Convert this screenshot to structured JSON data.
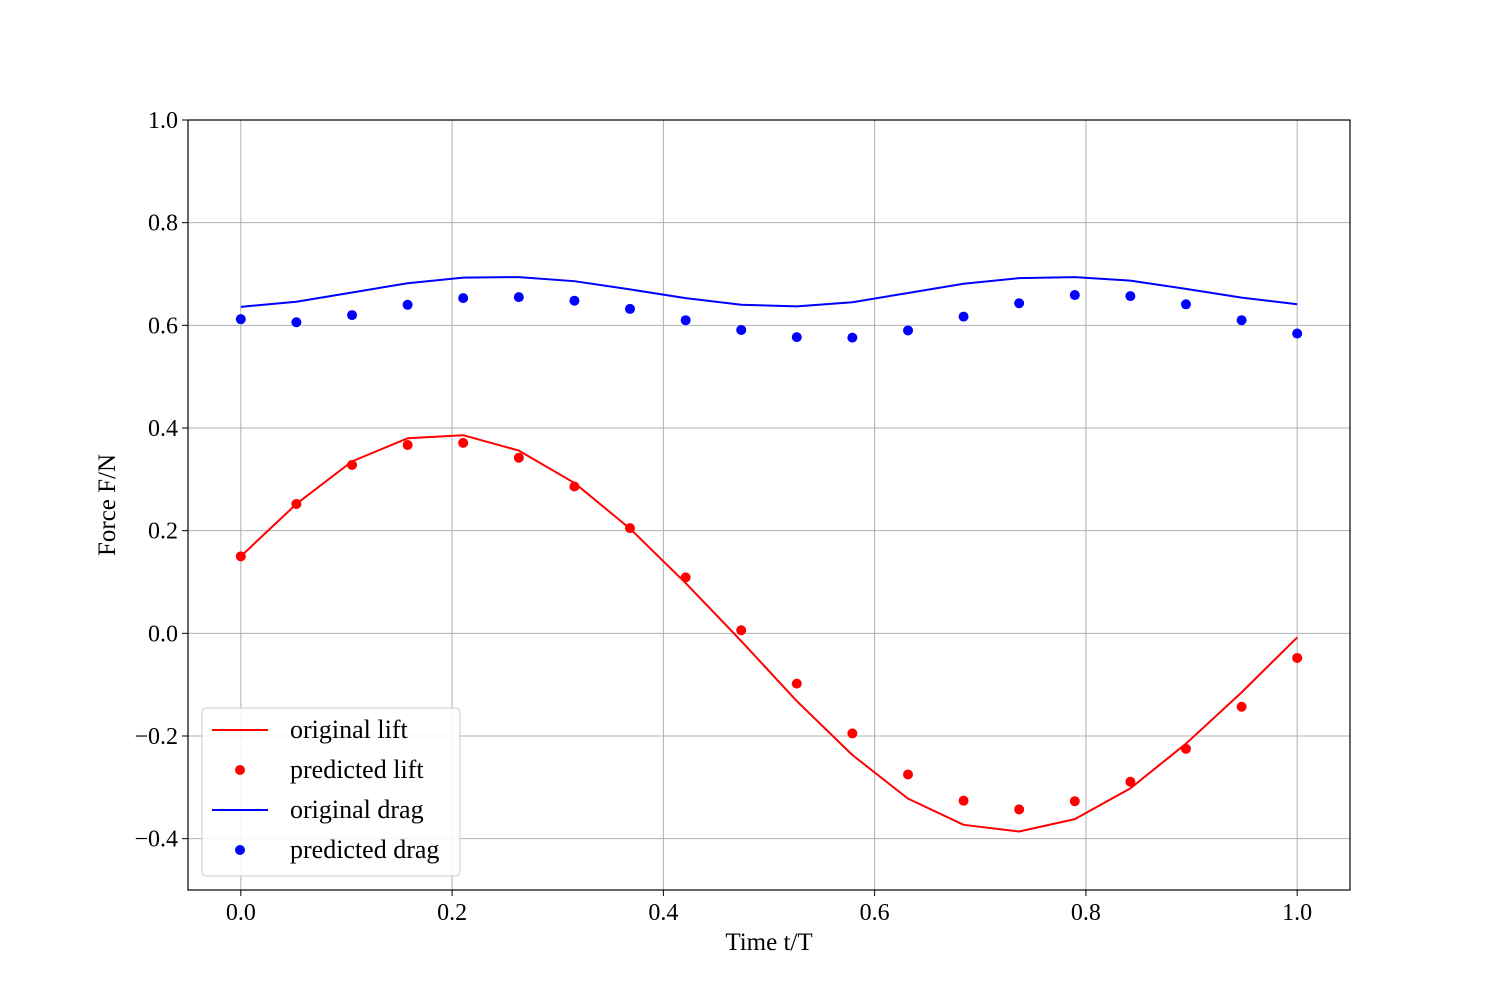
{
  "chart_data": {
    "type": "line",
    "title": "",
    "xlabel": "Time t/T",
    "ylabel": "Force F/N",
    "xlim": [
      -0.05,
      1.05
    ],
    "ylim": [
      -0.5,
      1.0
    ],
    "xticks": [
      0.0,
      0.2,
      0.4,
      0.6,
      0.8,
      1.0
    ],
    "xtick_labels": [
      "0.0",
      "0.2",
      "0.4",
      "0.6",
      "0.8",
      "1.0"
    ],
    "yticks": [
      -0.4,
      -0.2,
      0.0,
      0.2,
      0.4,
      0.6,
      0.8,
      1.0
    ],
    "ytick_labels": [
      "−0.4",
      "−0.2",
      "0.0",
      "0.2",
      "0.4",
      "0.6",
      "0.8",
      "1.0"
    ],
    "grid": true,
    "legend_position": "lower-left",
    "x": [
      0.0,
      0.0526,
      0.1053,
      0.1579,
      0.2105,
      0.2632,
      0.3158,
      0.3684,
      0.4211,
      0.4737,
      0.5263,
      0.5789,
      0.6316,
      0.6842,
      0.7368,
      0.7895,
      0.8421,
      0.8947,
      0.9474,
      1.0
    ],
    "series": [
      {
        "name": "original lift",
        "style": "line",
        "color": "#ff0000",
        "values": [
          0.15,
          0.252,
          0.335,
          0.38,
          0.386,
          0.356,
          0.293,
          0.204,
          0.098,
          -0.015,
          -0.132,
          -0.237,
          -0.322,
          -0.373,
          -0.386,
          -0.362,
          -0.302,
          -0.215,
          -0.115,
          -0.008
        ]
      },
      {
        "name": "predicted lift",
        "style": "scatter",
        "color": "#ff0000",
        "values": [
          0.15,
          0.252,
          0.328,
          0.367,
          0.371,
          0.342,
          0.286,
          0.205,
          0.109,
          0.006,
          -0.098,
          -0.195,
          -0.275,
          -0.326,
          -0.343,
          -0.327,
          -0.289,
          -0.225,
          -0.143,
          -0.048
        ]
      },
      {
        "name": "original drag",
        "style": "line",
        "color": "#0000ff",
        "values": [
          0.636,
          0.646,
          0.664,
          0.682,
          0.693,
          0.694,
          0.686,
          0.67,
          0.653,
          0.64,
          0.637,
          0.645,
          0.663,
          0.681,
          0.692,
          0.694,
          0.687,
          0.671,
          0.654,
          0.641
        ]
      },
      {
        "name": "predicted drag",
        "style": "scatter",
        "color": "#0000ff",
        "values": [
          0.612,
          0.606,
          0.62,
          0.64,
          0.653,
          0.655,
          0.648,
          0.632,
          0.61,
          0.591,
          0.577,
          0.576,
          0.59,
          0.617,
          0.643,
          0.659,
          0.657,
          0.641,
          0.61,
          0.584
        ]
      }
    ]
  }
}
